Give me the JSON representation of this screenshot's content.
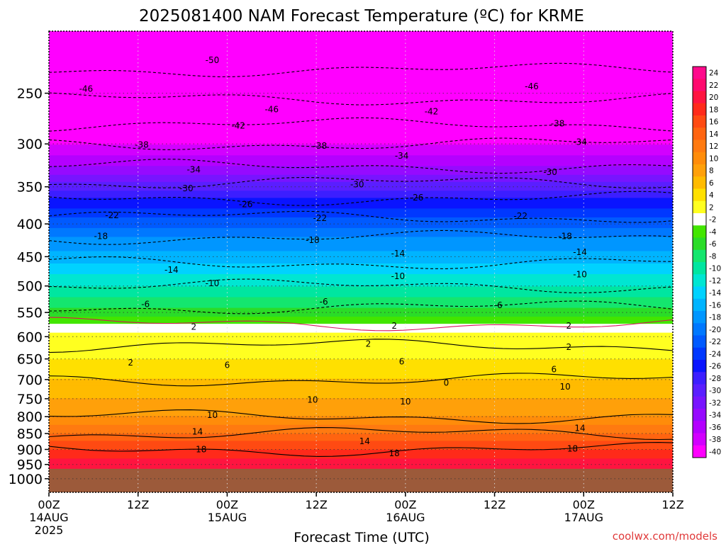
{
  "chart_data": {
    "type": "heatmap",
    "title": "2025081400 NAM Forecast Temperature (ºC) for KRME",
    "xlabel": "Forecast Time (UTC)",
    "credit": "coolwx.com/models",
    "x_range_hours": [
      0,
      84
    ],
    "x_ticks": [
      {
        "hour": 0,
        "label": "00Z",
        "date": "14AUG",
        "year": "2025"
      },
      {
        "hour": 12,
        "label": "12Z",
        "date": "",
        "year": ""
      },
      {
        "hour": 24,
        "label": "00Z",
        "date": "15AUG",
        "year": ""
      },
      {
        "hour": 36,
        "label": "12Z",
        "date": "",
        "year": ""
      },
      {
        "hour": 48,
        "label": "00Z",
        "date": "16AUG",
        "year": ""
      },
      {
        "hour": 60,
        "label": "12Z",
        "date": "",
        "year": ""
      },
      {
        "hour": 72,
        "label": "00Z",
        "date": "17AUG",
        "year": ""
      },
      {
        "hour": 84,
        "label": "12Z",
        "date": "",
        "year": ""
      }
    ],
    "y_axis": {
      "scale": "log",
      "units": "hPa",
      "range": [
        1050,
        200
      ],
      "ticks": [
        250,
        300,
        350,
        400,
        450,
        500,
        550,
        600,
        650,
        700,
        750,
        800,
        850,
        900,
        950,
        1000
      ]
    },
    "grid": true,
    "surface_pressure_hPa": 965,
    "colorbar": {
      "labels": [
        "24",
        "22",
        "20",
        "18",
        "16",
        "14",
        "12",
        "10",
        "8",
        "6",
        "4",
        "2",
        "-2",
        "-4",
        "-6",
        "-8",
        "-10",
        "-12",
        "-14",
        "-16",
        "-18",
        "-20",
        "-22",
        "-24",
        "-26",
        "-28",
        "-30",
        "-32",
        "-34",
        "-36",
        "-38",
        "-40"
      ],
      "colors": [
        "#ff0a8c",
        "#ff0a6e",
        "#ff1440",
        "#ff2a1a",
        "#ff4a12",
        "#ff6410",
        "#ff7a10",
        "#ff8c0a",
        "#ffa00a",
        "#ffbb00",
        "#ffe000",
        "#ffff20",
        "#ffffff",
        "#42e600",
        "#2adc28",
        "#14e66e",
        "#00e6a0",
        "#00e6d2",
        "#00d2ff",
        "#00b4ff",
        "#0096ff",
        "#0078ff",
        "#005aff",
        "#0038ff",
        "#0a14ff",
        "#3c1eff",
        "#5a1eff",
        "#7814ff",
        "#960aff",
        "#b400ff",
        "#d200ff",
        "#ff00ff"
      ]
    },
    "isotherm_labels": [
      {
        "text": "-50",
        "hour": 22,
        "p": 222
      },
      {
        "text": "-46",
        "hour": 5,
        "p": 246
      },
      {
        "text": "-46",
        "hour": 30,
        "p": 265
      },
      {
        "text": "-46",
        "hour": 65,
        "p": 244
      },
      {
        "text": "-42",
        "hour": 25.5,
        "p": 281
      },
      {
        "text": "-42",
        "hour": 51.5,
        "p": 267
      },
      {
        "text": "-38",
        "hour": 12.5,
        "p": 301
      },
      {
        "text": "-38",
        "hour": 36.5,
        "p": 302
      },
      {
        "text": "-38",
        "hour": 68.5,
        "p": 279
      },
      {
        "text": "-34",
        "hour": 19.5,
        "p": 329
      },
      {
        "text": "-34",
        "hour": 47.5,
        "p": 313
      },
      {
        "text": "-34",
        "hour": 71.5,
        "p": 298
      },
      {
        "text": "-30",
        "hour": 18.5,
        "p": 352
      },
      {
        "text": "-30",
        "hour": 41.5,
        "p": 347
      },
      {
        "text": "-30",
        "hour": 67.5,
        "p": 332
      },
      {
        "text": "-26",
        "hour": 26.5,
        "p": 373
      },
      {
        "text": "-26",
        "hour": 49.5,
        "p": 364
      },
      {
        "text": "-22",
        "hour": 8.5,
        "p": 388
      },
      {
        "text": "-22",
        "hour": 36.5,
        "p": 392
      },
      {
        "text": "-22",
        "hour": 63.5,
        "p": 389
      },
      {
        "text": "-18",
        "hour": 7,
        "p": 418
      },
      {
        "text": "-18",
        "hour": 35.5,
        "p": 424
      },
      {
        "text": "-18",
        "hour": 69.5,
        "p": 418
      },
      {
        "text": "-14",
        "hour": 16.5,
        "p": 472
      },
      {
        "text": "-14",
        "hour": 47,
        "p": 445
      },
      {
        "text": "-14",
        "hour": 71.5,
        "p": 443
      },
      {
        "text": "-10",
        "hour": 22,
        "p": 495
      },
      {
        "text": "-10",
        "hour": 47,
        "p": 483
      },
      {
        "text": "-10",
        "hour": 71.5,
        "p": 480
      },
      {
        "text": "-6",
        "hour": 13,
        "p": 534
      },
      {
        "text": "-6",
        "hour": 37,
        "p": 529
      },
      {
        "text": "-6",
        "hour": 60.5,
        "p": 536
      },
      {
        "text": "2",
        "hour": 19.5,
        "p": 579
      },
      {
        "text": "2",
        "hour": 46.5,
        "p": 577
      },
      {
        "text": "2",
        "hour": 70,
        "p": 577
      },
      {
        "text": "2",
        "hour": 43,
        "p": 616
      },
      {
        "text": "2",
        "hour": 70,
        "p": 623
      },
      {
        "text": "2",
        "hour": 11,
        "p": 659
      },
      {
        "text": "6",
        "hour": 24,
        "p": 665
      },
      {
        "text": "6",
        "hour": 47.5,
        "p": 656
      },
      {
        "text": "6",
        "hour": 68,
        "p": 675
      },
      {
        "text": "10",
        "hour": 35.5,
        "p": 753
      },
      {
        "text": "10",
        "hour": 48,
        "p": 758
      },
      {
        "text": "10",
        "hour": 69.5,
        "p": 718
      },
      {
        "text": "10",
        "hour": 22,
        "p": 795
      },
      {
        "text": "14",
        "hour": 20,
        "p": 844
      },
      {
        "text": "14",
        "hour": 42.5,
        "p": 874
      },
      {
        "text": "14",
        "hour": 71.5,
        "p": 834
      },
      {
        "text": "18",
        "hour": 20.5,
        "p": 900
      },
      {
        "text": "18",
        "hour": 46.5,
        "p": 913
      },
      {
        "text": "18",
        "hour": 70.5,
        "p": 898
      },
      {
        "text": "0",
        "hour": 53.5,
        "p": 708
      }
    ]
  }
}
